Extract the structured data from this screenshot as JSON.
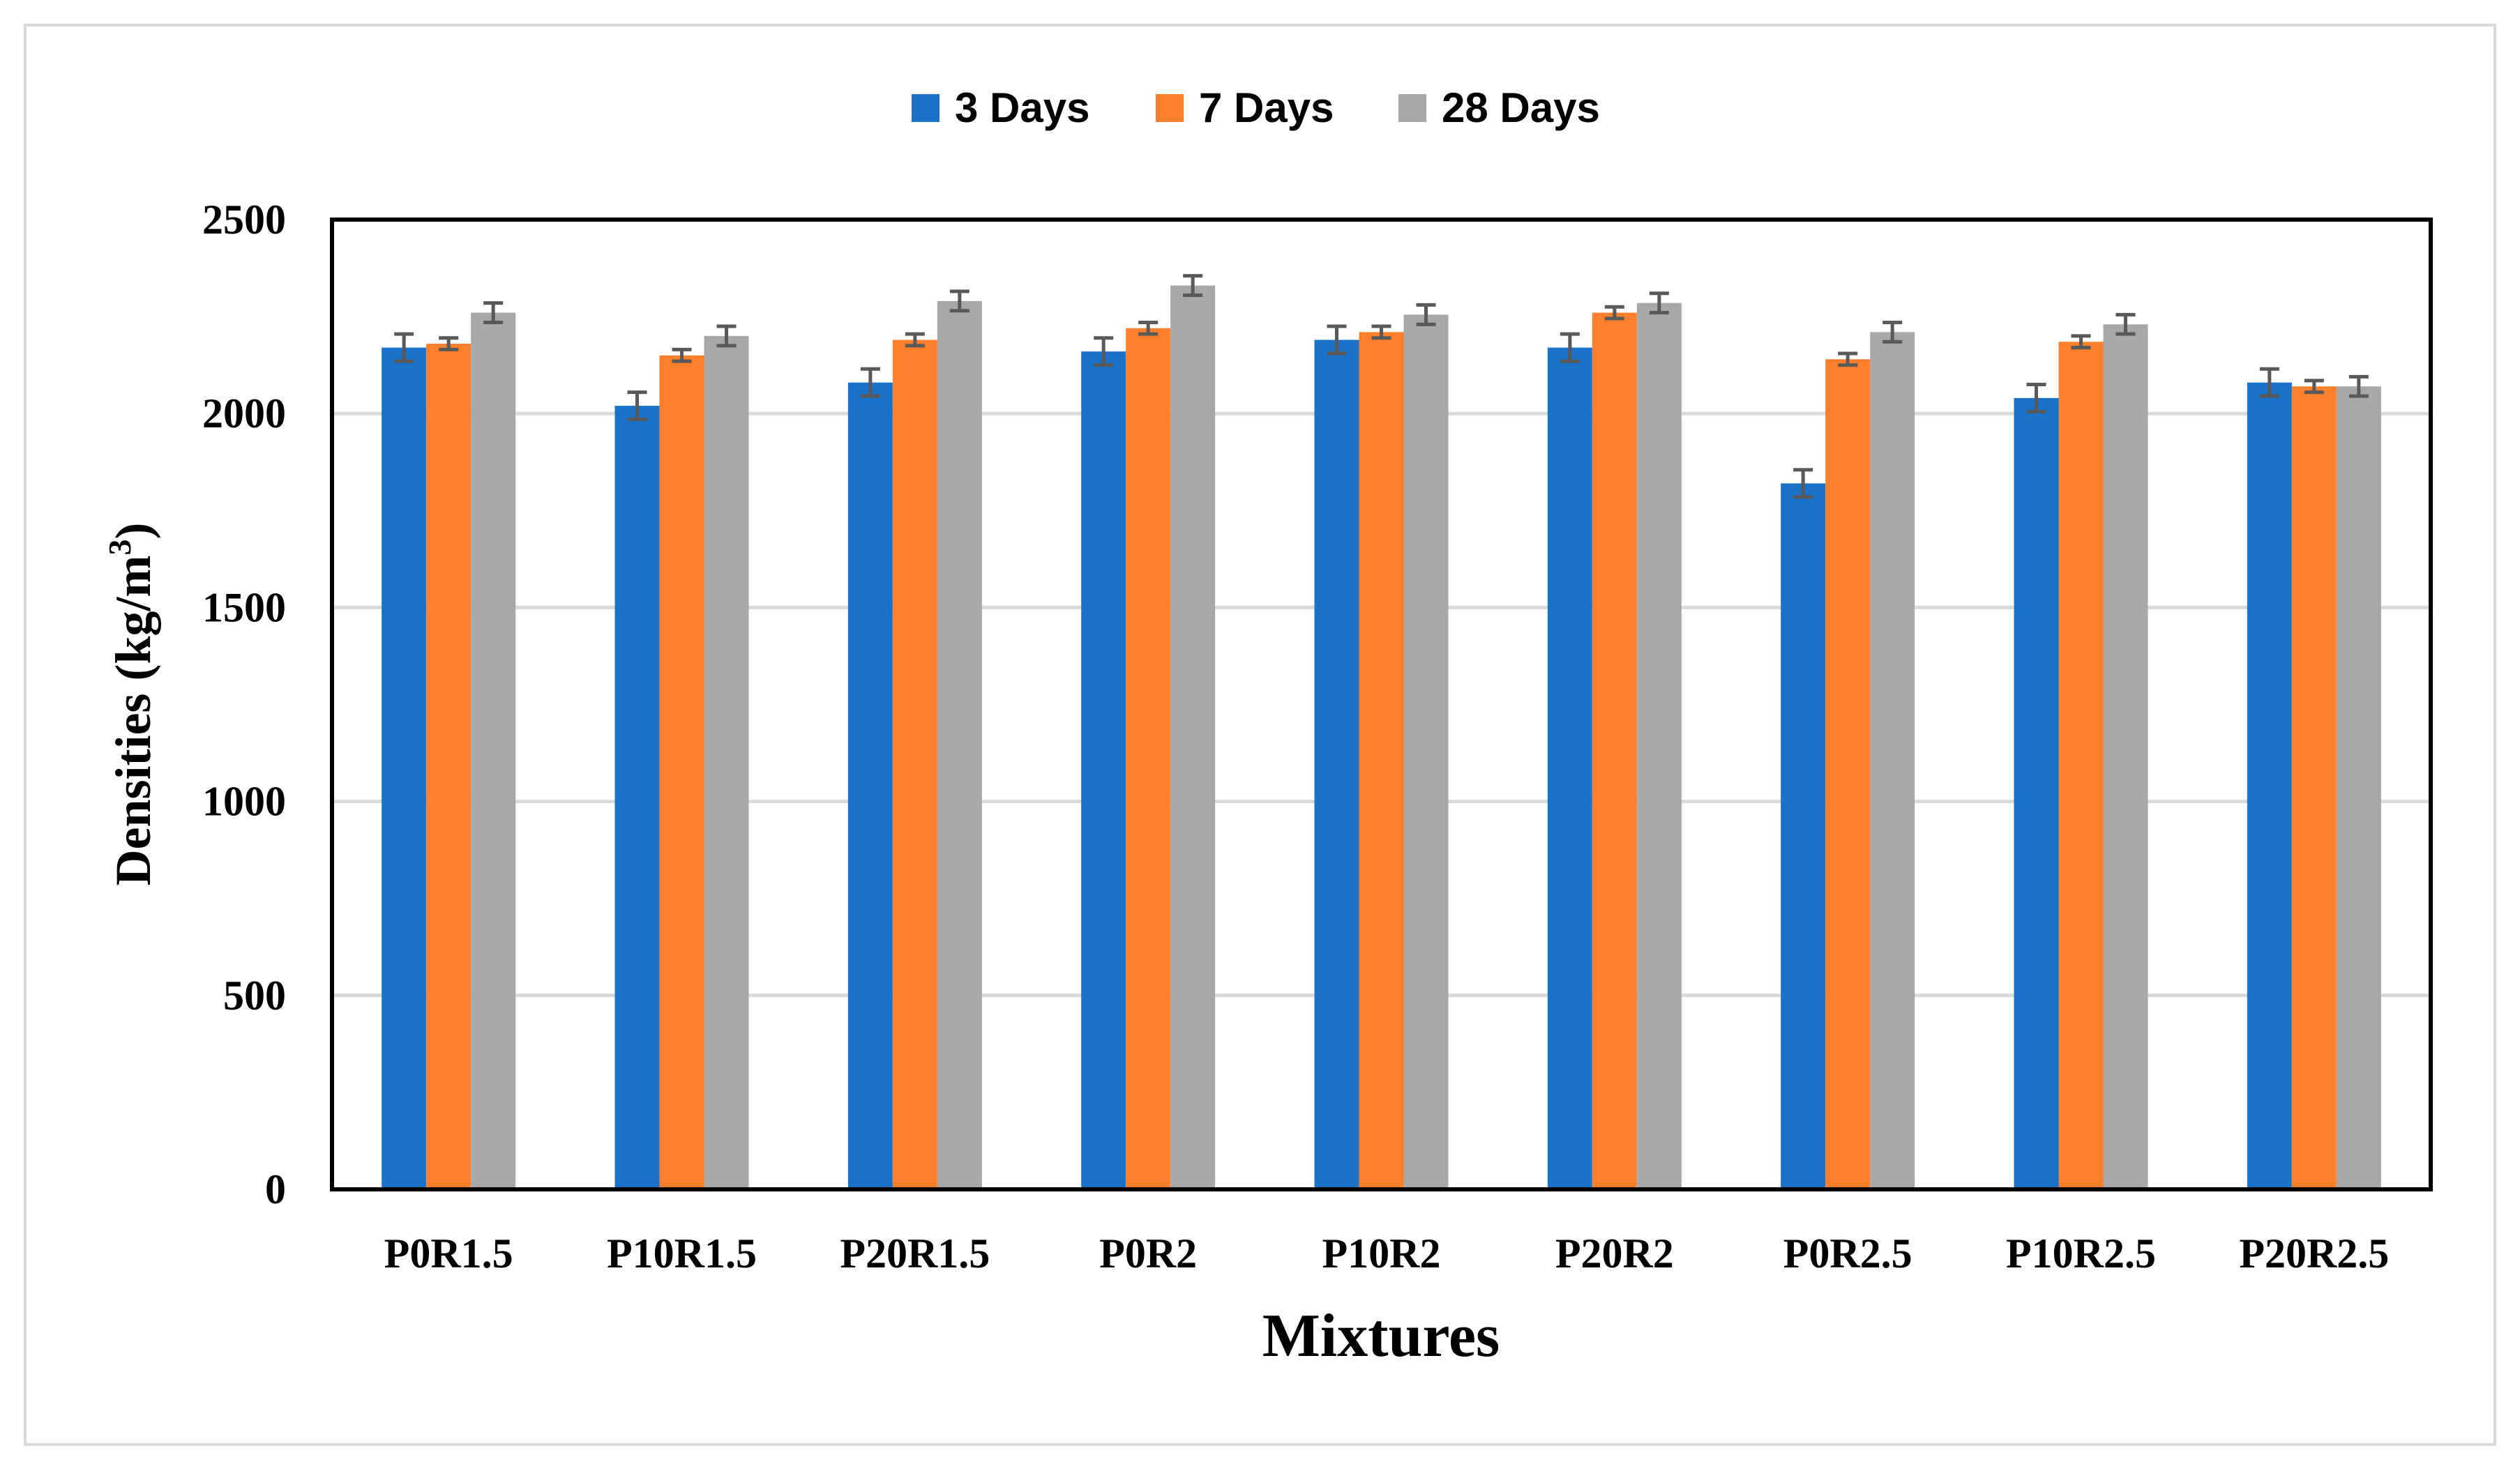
{
  "chart_data": {
    "type": "bar",
    "title": "",
    "xlabel": "Mixtures",
    "ylabel": "Densities (kg/m",
    "ylabel_sup": "3",
    "ylabel_close": ")",
    "ylim": [
      0,
      2500
    ],
    "yticks": [
      0,
      500,
      1000,
      1500,
      2000,
      2500
    ],
    "ytick_labels": [
      "0",
      "500",
      "1000",
      "1500",
      "2000",
      "2500"
    ],
    "grid": true,
    "legend_position": "top",
    "categories": [
      "P0R1.5",
      "P10R1.5",
      "P20R1.5",
      "P0R2",
      "P10R2",
      "P20R2",
      "P0R2.5",
      "P10R2.5",
      "P20R2.5"
    ],
    "series": [
      {
        "name": "3 Days",
        "color": "#1a72c9",
        "values": [
          2170,
          2020,
          2080,
          2160,
          2190,
          2170,
          1820,
          2040,
          2080
        ],
        "errors": [
          35,
          35,
          35,
          35,
          35,
          35,
          35,
          35,
          35
        ]
      },
      {
        "name": "7 Days",
        "color": "#fe7f2b",
        "values": [
          2180,
          2150,
          2190,
          2220,
          2210,
          2260,
          2140,
          2185,
          2070
        ],
        "errors": [
          15,
          15,
          15,
          15,
          15,
          15,
          15,
          15,
          15
        ]
      },
      {
        "name": "28 Days",
        "color": "#a8a8a8",
        "values": [
          2260,
          2200,
          2290,
          2330,
          2255,
          2285,
          2210,
          2230,
          2070
        ],
        "errors": [
          25,
          25,
          25,
          25,
          25,
          25,
          25,
          25,
          25
        ]
      }
    ]
  }
}
